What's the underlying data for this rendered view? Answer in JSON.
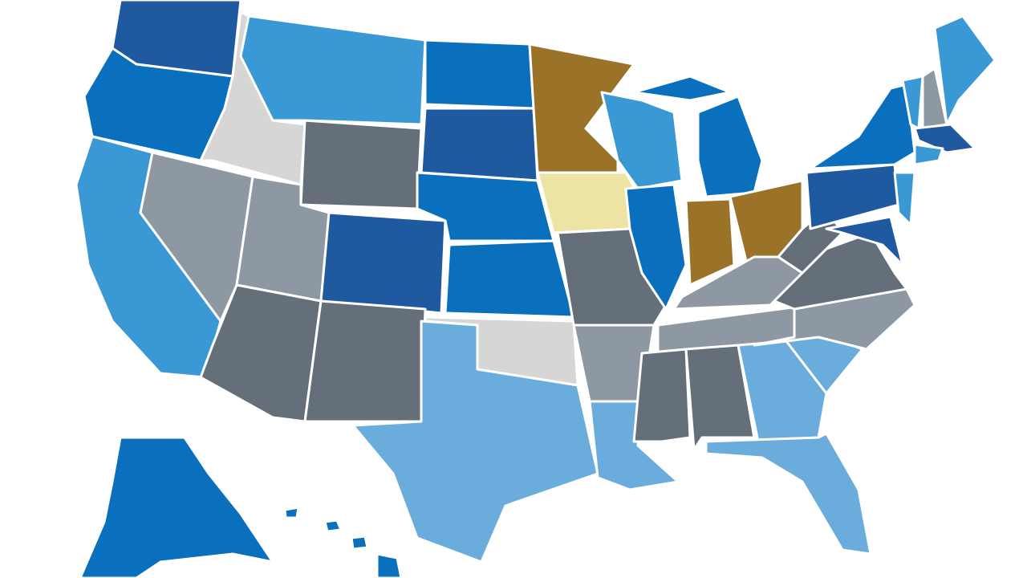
{
  "map": {
    "palette": [
      "#1f5aa0",
      "#0a6fbd",
      "#3a98d4",
      "#6aacdc",
      "#646f7a",
      "#8e98a2",
      "#d6d6d6",
      "#9a7228",
      "#ede4a4"
    ]
  }
}
